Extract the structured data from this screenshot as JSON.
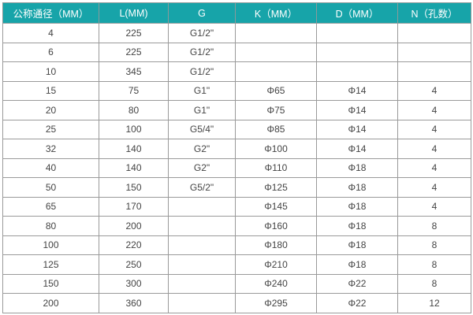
{
  "table": {
    "headers": [
      "公称通径（MM）",
      "L(MM)",
      "G",
      "K（MM）",
      "D（MM）",
      "N（孔数）"
    ],
    "rows": [
      [
        "4",
        "225",
        "G1/2\"",
        "",
        "",
        ""
      ],
      [
        "6",
        "225",
        "G1/2\"",
        "",
        "",
        ""
      ],
      [
        "10",
        "345",
        "G1/2\"",
        "",
        "",
        ""
      ],
      [
        "15",
        "75",
        "G1\"",
        "Φ65",
        "Φ14",
        "4"
      ],
      [
        "20",
        "80",
        "G1\"",
        "Φ75",
        "Φ14",
        "4"
      ],
      [
        "25",
        "100",
        "G5/4\"",
        "Φ85",
        "Φ14",
        "4"
      ],
      [
        "32",
        "140",
        "G2\"",
        "Φ100",
        "Φ14",
        "4"
      ],
      [
        "40",
        "140",
        "G2\"",
        "Φ110",
        "Φ18",
        "4"
      ],
      [
        "50",
        "150",
        "G5/2\"",
        "Φ125",
        "Φ18",
        "4"
      ],
      [
        "65",
        "170",
        "",
        "Φ145",
        "Φ18",
        "4"
      ],
      [
        "80",
        "200",
        "",
        "Φ160",
        "Φ18",
        "8"
      ],
      [
        "100",
        "220",
        "",
        "Φ180",
        "Φ18",
        "8"
      ],
      [
        "125",
        "250",
        "",
        "Φ210",
        "Φ18",
        "8"
      ],
      [
        "150",
        "300",
        "",
        "Φ240",
        "Φ22",
        "8"
      ],
      [
        "200",
        "360",
        "",
        "Φ295",
        "Φ22",
        "12"
      ]
    ]
  },
  "colors": {
    "header_bg": "#17a4a9",
    "header_text": "#ffffff",
    "border": "#9a9a9a"
  }
}
